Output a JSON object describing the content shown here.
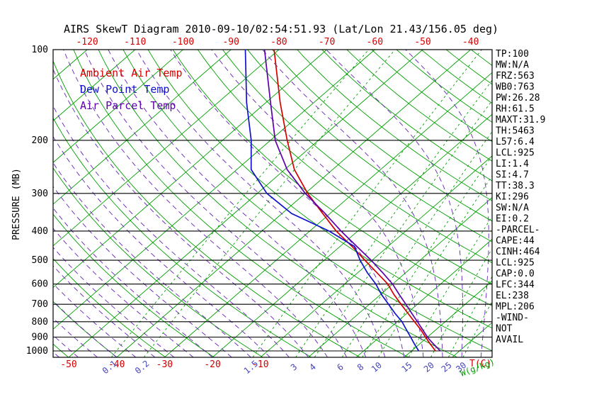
{
  "title": "AIRS SkewT Diagram 2010-09-10/02:54:51.93 (Lat/Lon 21.43/156.05 deg)",
  "legend": [
    {
      "key": "ambient",
      "label": "Ambient Air Temp"
    },
    {
      "key": "dew_point",
      "label": "Dew Point Temp"
    },
    {
      "key": "parcel",
      "label": "Air Parcel Temp"
    }
  ],
  "colors": {
    "ambient": "#d40000",
    "dew_point": "#1111cc",
    "parcel": "#5a00aa",
    "isotherm": "#00a000",
    "dry_adiabat": "#00a000",
    "moist_adiabat": "#6622bb",
    "mixing_ratio": "#00a000",
    "mixing_label": "#4444bb",
    "tick_red": "#d40000",
    "axis_black": "#000000"
  },
  "axes": {
    "pressure_label": "PRESSURE (MB)",
    "pressure_ticks": [
      "100",
      "200",
      "300",
      "400",
      "500",
      "600",
      "700",
      "800",
      "900",
      "1000"
    ],
    "top_temp_ticks": [
      "-120",
      "-110",
      "-100",
      "-90",
      "-80",
      "-70",
      "-60",
      "-50",
      "-40"
    ],
    "bottom_temp_ticks": [
      "-50",
      "-40",
      "-30",
      "-20",
      "-10"
    ],
    "temp_unit_label": "T(C)",
    "mixing_ratio_labels": [
      "0.1",
      "0.2",
      "1.5",
      "3",
      "4",
      "6",
      "8",
      "10",
      "15",
      "20",
      "25",
      "30"
    ],
    "mixing_ratio_unit_label": "W(g/kg)"
  },
  "stats": [
    "TP:100",
    "MW:N/A",
    "FRZ:563",
    "WB0:763",
    "PW:26.28",
    "RH:61.5",
    "MAXT:31.9",
    "TH:5463",
    "L57:6.4",
    "LCL:925",
    "LI:1.4",
    "SI:4.7",
    "TT:38.3",
    "KI:296",
    "SW:N/A",
    "EI:0.2",
    "-PARCEL-",
    "CAPE:44",
    "CINH:464",
    "LCL:925",
    "CAP:0.0",
    "LFC:344",
    "EL:238",
    "MPL:206",
    "-WIND-",
    "NOT",
    "AVAIL"
  ],
  "chart_data": {
    "type": "line",
    "title": "AIRS Skew-T log-P sounding",
    "xlabel": "Temperature (C)",
    "ylabel": "Pressure (MB)",
    "y_scale": "log",
    "ylim": [
      100,
      1050
    ],
    "x_top_range": [
      -120,
      -40
    ],
    "x_bottom_range": [
      -50,
      38
    ],
    "grid": "skew-t background (isotherms, dry/moist adiabats, mixing ratio lines)",
    "legend_position": "top-left inside plot",
    "series": [
      {
        "name": "Ambient Air Temp",
        "key": "ambient-temp",
        "color_key": "ambient",
        "points_p_t": [
          [
            1000,
            25.0
          ],
          [
            950,
            22.3
          ],
          [
            900,
            19.6
          ],
          [
            850,
            16.8
          ],
          [
            800,
            13.6
          ],
          [
            750,
            10.2
          ],
          [
            700,
            6.6
          ],
          [
            650,
            2.8
          ],
          [
            600,
            -1.0
          ],
          [
            550,
            -6.0
          ],
          [
            500,
            -11.5
          ],
          [
            450,
            -17.5
          ],
          [
            400,
            -24.5
          ],
          [
            350,
            -31.5
          ],
          [
            300,
            -39.5
          ],
          [
            250,
            -48.0
          ],
          [
            200,
            -56.5
          ],
          [
            150,
            -67.0
          ],
          [
            100,
            -81.0
          ]
        ]
      },
      {
        "name": "Dew Point Temp",
        "key": "dew-point-temp",
        "color_key": "dew_point",
        "points_p_t": [
          [
            1000,
            21.5
          ],
          [
            950,
            19.0
          ],
          [
            900,
            16.5
          ],
          [
            850,
            13.8
          ],
          [
            800,
            11.0
          ],
          [
            750,
            7.5
          ],
          [
            700,
            4.0
          ],
          [
            650,
            0.2
          ],
          [
            600,
            -3.5
          ],
          [
            550,
            -8.0
          ],
          [
            500,
            -12.5
          ],
          [
            450,
            -17.0
          ],
          [
            400,
            -26.0
          ],
          [
            350,
            -38.0
          ],
          [
            300,
            -48.0
          ],
          [
            250,
            -57.0
          ],
          [
            200,
            -64.0
          ],
          [
            150,
            -74.0
          ],
          [
            100,
            -87.0
          ]
        ]
      },
      {
        "name": "Air Parcel Temp",
        "key": "parcel-temp",
        "color_key": "parcel",
        "points_p_t": [
          [
            1000,
            26.0
          ],
          [
            950,
            23.0
          ],
          [
            925,
            21.5
          ],
          [
            900,
            20.0
          ],
          [
            850,
            17.2
          ],
          [
            800,
            14.2
          ],
          [
            750,
            11.0
          ],
          [
            700,
            7.6
          ],
          [
            650,
            3.9
          ],
          [
            600,
            0.0
          ],
          [
            550,
            -4.8
          ],
          [
            500,
            -10.2
          ],
          [
            450,
            -16.5
          ],
          [
            400,
            -23.5
          ],
          [
            350,
            -31.0
          ],
          [
            300,
            -40.0
          ],
          [
            250,
            -49.5
          ],
          [
            200,
            -59.0
          ],
          [
            150,
            -69.0
          ],
          [
            100,
            -83.0
          ]
        ]
      }
    ],
    "background": {
      "isotherm_step_c": 10,
      "dry_adiabat_theta_k": {
        "min": 220,
        "max": 470,
        "step": 10
      },
      "moist_adiabat_start_c": {
        "min": -60,
        "max": 40,
        "step": 4
      },
      "mixing_ratio_g_kg": [
        0.1,
        0.2,
        1.5,
        3,
        4,
        6,
        8,
        10,
        15,
        20,
        25,
        30
      ]
    }
  }
}
